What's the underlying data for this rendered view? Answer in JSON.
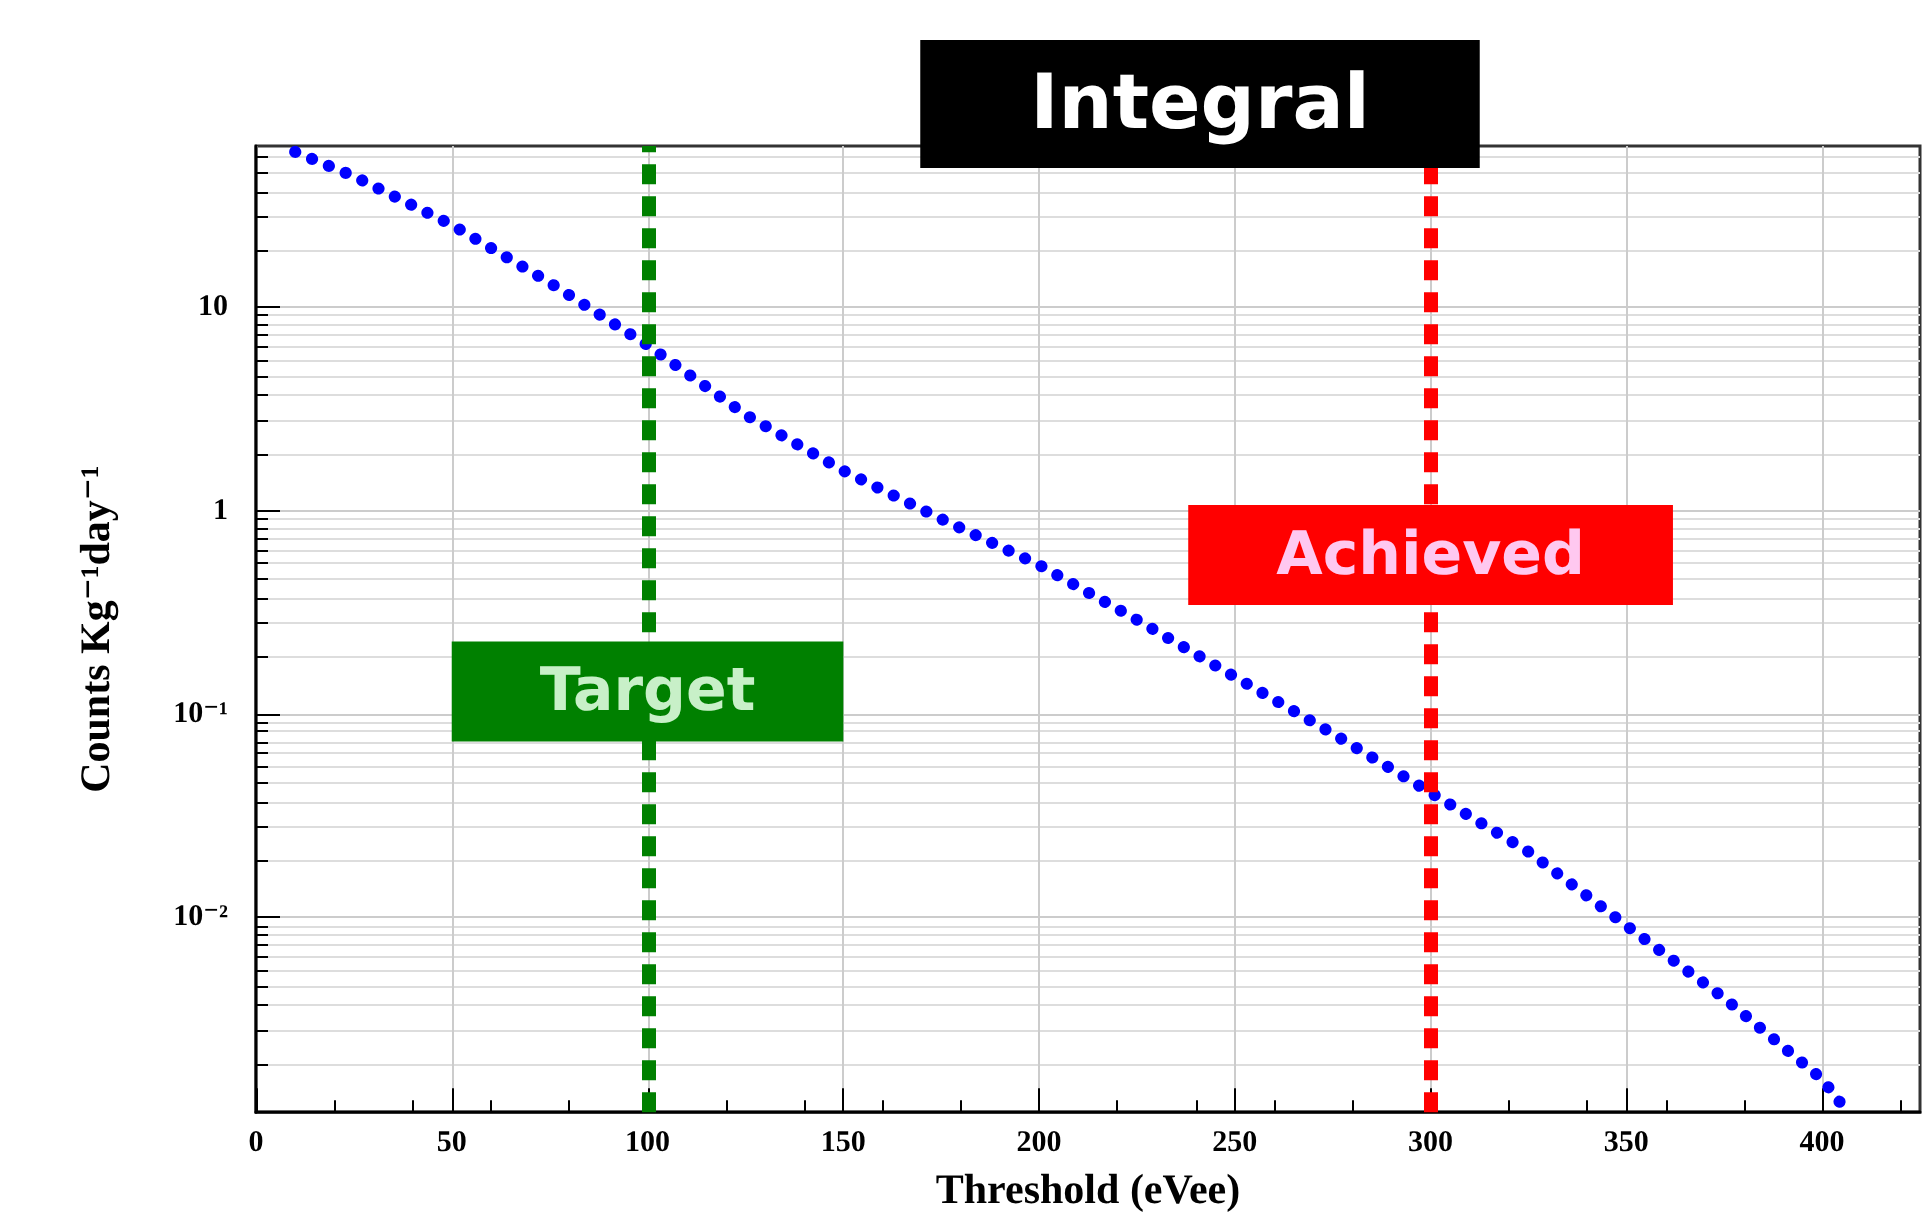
{
  "chart_data": {
    "type": "line",
    "title": "Integral",
    "xlabel": "Threshold (eVee)",
    "ylabel": "Counts Kg⁻¹day⁻¹",
    "log": "y",
    "grid": true,
    "marker": "none",
    "line_style": "dotted",
    "x": [
      10,
      25,
      50,
      75,
      100,
      125,
      150,
      175,
      200,
      225,
      250,
      275,
      300,
      325,
      350,
      375,
      400,
      405
    ],
    "series": [
      {
        "color": "#0000ff",
        "values": [
          58,
          44,
          25.4,
          13.2,
          6.5,
          2.96,
          1.57,
          0.91,
          0.54,
          0.29,
          0.152,
          0.08,
          0.041,
          0.021,
          0.0091,
          0.004,
          0.0016,
          0.0012
        ]
      }
    ],
    "xlim": [
      0,
      425
    ],
    "xticks": [
      0,
      50,
      100,
      150,
      200,
      250,
      300,
      350,
      400
    ],
    "ylim": [
      0.0011,
      62
    ],
    "yticks": [
      {
        "value": 0.01,
        "label": "10⁻²"
      },
      {
        "value": 0.1,
        "label": "10⁻¹"
      },
      1,
      10
    ],
    "ref_lines": [
      {
        "axis": "x",
        "value": 100,
        "label": "Target",
        "color": "#008000",
        "line_style": "dashed"
      },
      {
        "axis": "x",
        "value": 300,
        "label": "Achieved",
        "color": "#ff0000",
        "line_style": "dashed"
      }
    ]
  }
}
